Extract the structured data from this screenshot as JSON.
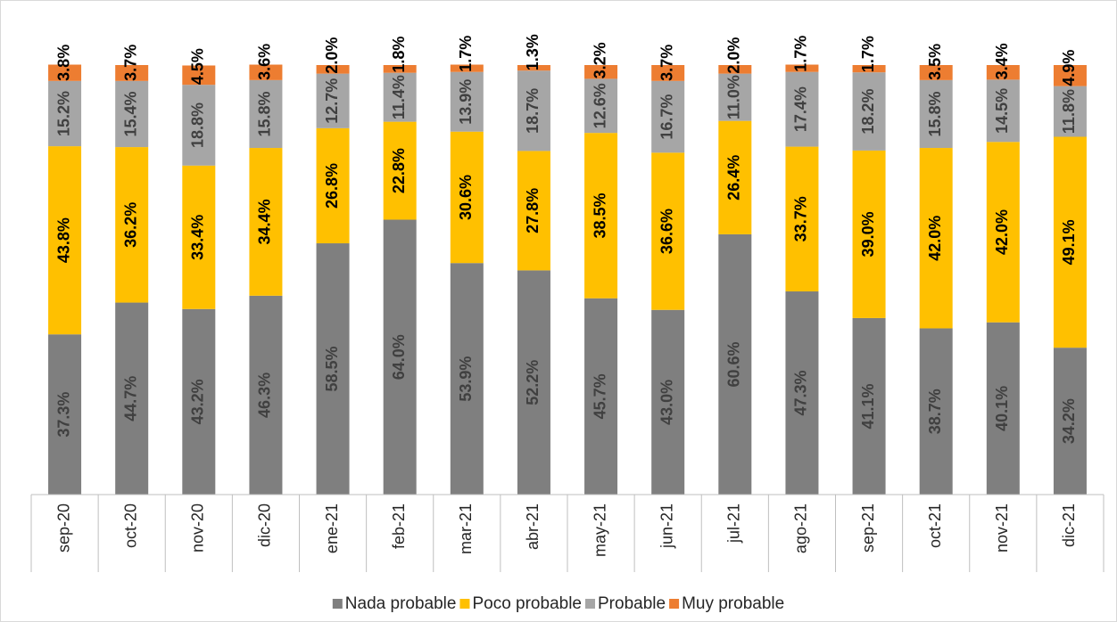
{
  "chart_data": {
    "type": "stacked_bar",
    "categories": [
      "sep-20",
      "oct-20",
      "nov-20",
      "dic-20",
      "ene-21",
      "feb-21",
      "mar-21",
      "abr-21",
      "may-21",
      "jun-21",
      "jul-21",
      "ago-21",
      "sep-21",
      "oct-21",
      "nov-21",
      "dic-21"
    ],
    "ylim": [
      0,
      100
    ],
    "legend": "bottom",
    "series": [
      {
        "name": "Nada probable",
        "color": "#7f7f7f",
        "values": [
          37.3,
          44.7,
          43.2,
          46.3,
          58.5,
          64.0,
          53.9,
          52.2,
          45.7,
          43.0,
          60.6,
          47.3,
          41.1,
          38.7,
          40.1,
          34.2
        ],
        "value_labels": [
          "37.3%",
          "44.7%",
          "43.2%",
          "46.3%",
          "58.5%",
          "64.0%",
          "53.9%",
          "52.2%",
          "45.7%",
          "43.0%",
          "60.6%",
          "47.3%",
          "41.1%",
          "38.7%",
          "40.1%",
          "34.2%"
        ]
      },
      {
        "name": "Poco probable",
        "color": "#ffc000",
        "values": [
          43.8,
          36.2,
          33.4,
          34.4,
          26.8,
          22.8,
          30.6,
          27.8,
          38.5,
          36.6,
          26.4,
          33.7,
          39.0,
          42.0,
          42.0,
          49.1
        ],
        "value_labels": [
          "43.8%",
          "36.2%",
          "33.4%",
          "34.4%",
          "26.8%",
          "22.8%",
          "30.6%",
          "27.8%",
          "38.5%",
          "36.6%",
          "26.4%",
          "33.7%",
          "39.0%",
          "42.0%",
          "42.0%",
          "49.1%"
        ]
      },
      {
        "name": "Probable",
        "color": "#a6a6a6",
        "values": [
          15.2,
          15.4,
          18.8,
          15.8,
          12.7,
          11.4,
          13.9,
          18.7,
          12.6,
          16.7,
          11.0,
          17.4,
          18.2,
          15.8,
          14.5,
          11.8
        ],
        "value_labels": [
          "15.2%",
          "15.4%",
          "18.8%",
          "15.8%",
          "12.7%",
          "11.4%",
          "13.9%",
          "18.7%",
          "12.6%",
          "16.7%",
          "11.0%",
          "17.4%",
          "18.2%",
          "15.8%",
          "14.5%",
          "11.8%"
        ]
      },
      {
        "name": "Muy probable",
        "color": "#ed7d31",
        "values": [
          3.8,
          3.7,
          4.5,
          3.6,
          2.0,
          1.8,
          1.7,
          1.3,
          3.2,
          3.7,
          2.0,
          1.7,
          1.7,
          3.5,
          3.4,
          4.9
        ],
        "value_labels": [
          "3.8%",
          "3.7%",
          "4.5%",
          "3.6%",
          "2.0%",
          "1.8%",
          "1.7%",
          "1.3%",
          "3.2%",
          "3.7%",
          "2.0%",
          "1.7%",
          "1.7%",
          "3.5%",
          "3.4%",
          "4.9%"
        ]
      }
    ]
  }
}
